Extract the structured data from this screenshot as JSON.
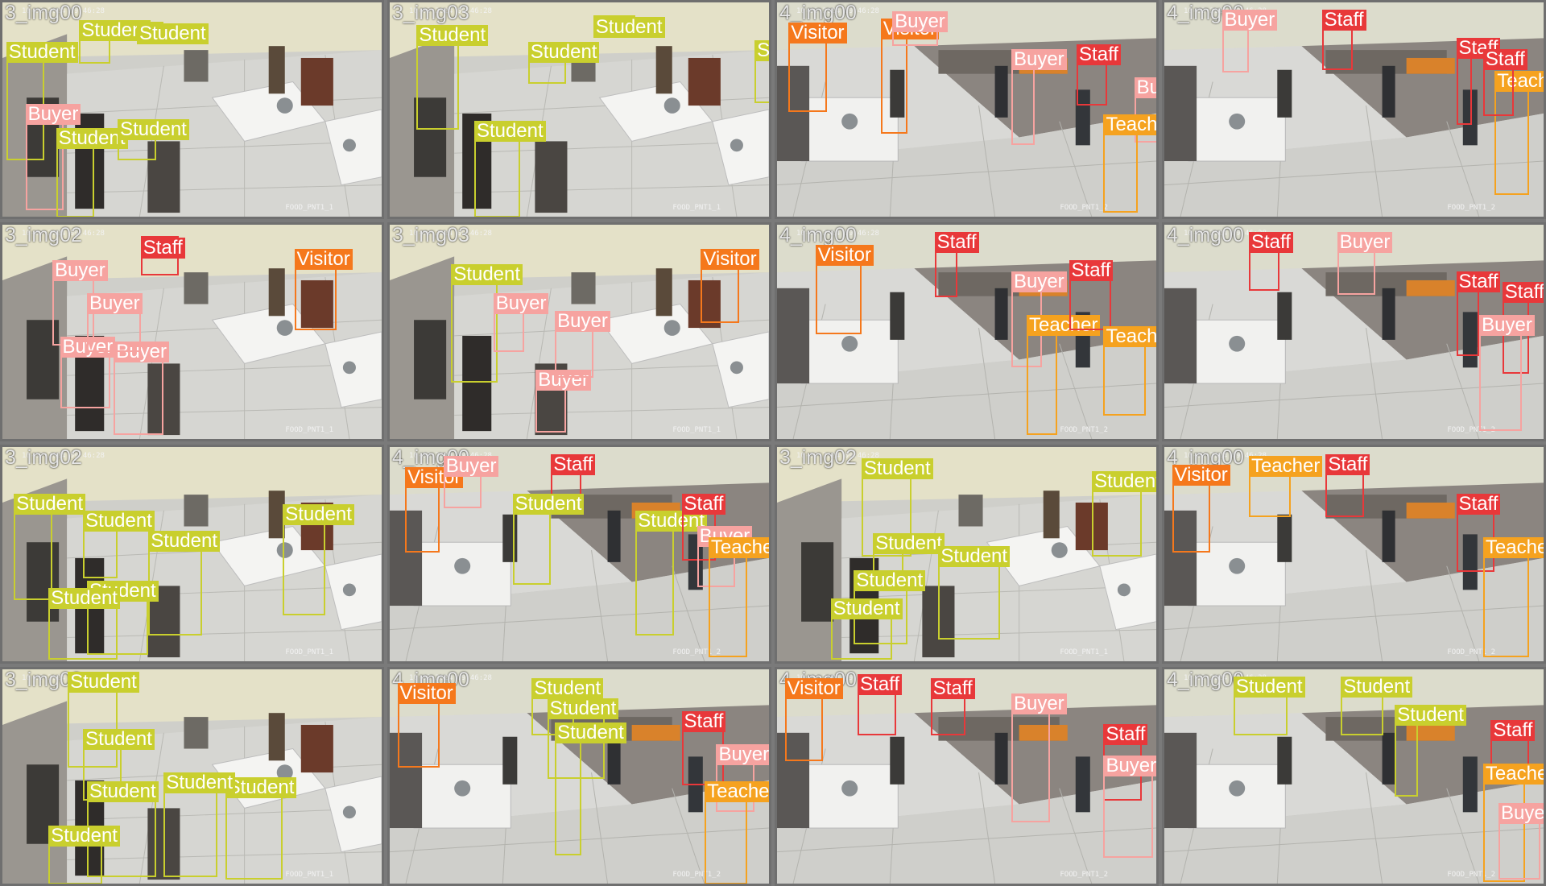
{
  "colors": {
    "Student": "#c9cf2e",
    "Buyer": "#f6a3a0",
    "Staff": "#e8383a",
    "Visitor": "#f5781c",
    "Teacher": "#f5a21f"
  },
  "tiles": [
    {
      "label": "3_img00",
      "date": "10-03-2024 09:46:28",
      "cam": "FOOD_PNT1_1",
      "scene": "A",
      "detections": [
        [
          "Student",
          0.01,
          0.27,
          0.11,
          0.72
        ],
        [
          "Buyer",
          0.06,
          0.55,
          0.16,
          0.95
        ],
        [
          "Student",
          0.14,
          0.66,
          0.24,
          0.98
        ],
        [
          "Student",
          0.3,
          0.62,
          0.4,
          0.72
        ],
        [
          "Student",
          0.2,
          0.17,
          0.28,
          0.28
        ],
        [
          "Student",
          0.35,
          0.09,
          0.42,
          0.16
        ]
      ]
    },
    {
      "label": "3_img03",
      "date": "10-03-2024 09:46:28",
      "cam": "FOOD_PNT1_1",
      "scene": "A",
      "detections": [
        [
          "Student",
          0.07,
          0.19,
          0.18,
          0.58
        ],
        [
          "Student",
          0.22,
          0.63,
          0.34,
          0.98
        ],
        [
          "Student",
          0.36,
          0.27,
          0.46,
          0.37
        ],
        [
          "Student",
          0.53,
          0.06,
          0.64,
          0.15
        ],
        [
          "Student",
          0.95,
          0.26,
          1.0,
          0.46
        ]
      ]
    },
    {
      "label": "4_img00",
      "date": "10-03-2024 09:46:28",
      "cam": "FOOD_PNT1_2",
      "scene": "B",
      "detections": [
        [
          "Visitor",
          0.03,
          0.18,
          0.13,
          0.5
        ],
        [
          "Visitor",
          0.27,
          0.16,
          0.34,
          0.6
        ],
        [
          "Buyer",
          0.3,
          0.13,
          0.42,
          0.2
        ],
        [
          "Buyer",
          0.61,
          0.3,
          0.67,
          0.65
        ],
        [
          "Staff",
          0.78,
          0.28,
          0.86,
          0.47
        ],
        [
          "Buyer",
          0.93,
          0.43,
          1.0,
          0.64
        ],
        [
          "Teacher",
          0.85,
          0.6,
          0.94,
          0.96
        ]
      ]
    },
    {
      "label": "4_img00",
      "date": "10-03-2024 09:46:28",
      "cam": "FOOD_PNT1_2",
      "scene": "B",
      "detections": [
        [
          "Buyer",
          0.15,
          0.12,
          0.22,
          0.32
        ],
        [
          "Staff",
          0.41,
          0.12,
          0.49,
          0.31
        ],
        [
          "Staff",
          0.76,
          0.25,
          0.8,
          0.56
        ],
        [
          "Teacher",
          0.86,
          0.4,
          0.95,
          0.88
        ],
        [
          "Staff",
          0.83,
          0.3,
          0.91,
          0.52
        ]
      ]
    },
    {
      "label": "3_img02",
      "date": "10-03-2024 09:46:28",
      "cam": "FOOD_PNT1_1",
      "scene": "A",
      "detections": [
        [
          "Staff",
          0.36,
          0.05,
          0.46,
          0.23
        ],
        [
          "Visitor",
          0.76,
          0.2,
          0.87,
          0.48
        ],
        [
          "Buyer",
          0.13,
          0.25,
          0.24,
          0.55
        ],
        [
          "Buyer",
          0.15,
          0.6,
          0.28,
          0.84
        ],
        [
          "Buyer",
          0.29,
          0.62,
          0.42,
          0.96
        ],
        [
          "Buyer",
          0.22,
          0.4,
          0.36,
          0.58
        ]
      ]
    },
    {
      "label": "3_img03",
      "date": "10-03-2024 09:46:28",
      "cam": "FOOD_PNT1_1",
      "scene": "A",
      "detections": [
        [
          "Student",
          0.16,
          0.27,
          0.28,
          0.72
        ],
        [
          "Buyer",
          0.27,
          0.4,
          0.35,
          0.58
        ],
        [
          "Buyer",
          0.38,
          0.75,
          0.46,
          0.95
        ],
        [
          "Buyer",
          0.43,
          0.48,
          0.53,
          0.7
        ],
        [
          "Visitor",
          0.81,
          0.2,
          0.91,
          0.45
        ]
      ]
    },
    {
      "label": "4_img00",
      "date": "10-03-2024 09:46:28",
      "cam": "FOOD_PNT1_2",
      "scene": "B",
      "detections": [
        [
          "Visitor",
          0.1,
          0.18,
          0.22,
          0.5
        ],
        [
          "Staff",
          0.41,
          0.12,
          0.47,
          0.33
        ],
        [
          "Buyer",
          0.61,
          0.3,
          0.69,
          0.65
        ],
        [
          "Teacher",
          0.65,
          0.5,
          0.73,
          0.96
        ],
        [
          "Staff",
          0.76,
          0.25,
          0.87,
          0.48
        ],
        [
          "Teacher",
          0.85,
          0.55,
          0.96,
          0.87
        ]
      ]
    },
    {
      "label": "4_img00",
      "date": "10-03-2024 09:46:28",
      "cam": "FOOD_PNT1_2",
      "scene": "B",
      "detections": [
        [
          "Staff",
          0.22,
          0.12,
          0.3,
          0.3
        ],
        [
          "Buyer",
          0.45,
          0.12,
          0.55,
          0.32
        ],
        [
          "Staff",
          0.76,
          0.3,
          0.82,
          0.6
        ],
        [
          "Staff",
          0.88,
          0.35,
          0.95,
          0.68
        ],
        [
          "Buyer",
          0.82,
          0.5,
          0.93,
          0.94
        ]
      ]
    },
    {
      "label": "3_img02",
      "date": "10-03-2024 09:46:28",
      "cam": "FOOD_PNT1_1",
      "scene": "A",
      "detections": [
        [
          "Student",
          0.03,
          0.3,
          0.13,
          0.7
        ],
        [
          "Student",
          0.21,
          0.38,
          0.3,
          0.6
        ],
        [
          "Student",
          0.38,
          0.47,
          0.52,
          0.86
        ],
        [
          "Student",
          0.73,
          0.35,
          0.84,
          0.77
        ],
        [
          "Student",
          0.22,
          0.7,
          0.38,
          0.95
        ],
        [
          "Student",
          0.12,
          0.73,
          0.3,
          0.97
        ]
      ]
    },
    {
      "label": "4_img00",
      "date": "10-03-2024 09:46:28",
      "cam": "FOOD_PNT1_2",
      "scene": "B",
      "detections": [
        [
          "Visitor",
          0.04,
          0.18,
          0.13,
          0.48
        ],
        [
          "Buyer",
          0.14,
          0.13,
          0.24,
          0.28
        ],
        [
          "Staff",
          0.42,
          0.12,
          0.5,
          0.3
        ],
        [
          "Student",
          0.32,
          0.3,
          0.42,
          0.63
        ],
        [
          "Student",
          0.64,
          0.38,
          0.74,
          0.86
        ],
        [
          "Staff",
          0.76,
          0.3,
          0.85,
          0.52
        ],
        [
          "Buyer",
          0.8,
          0.45,
          0.9,
          0.64
        ],
        [
          "Teacher",
          0.83,
          0.5,
          0.93,
          0.96
        ]
      ]
    },
    {
      "label": "3_img02",
      "date": "10-03-2024 09:46:28",
      "cam": "FOOD_PNT1_1",
      "scene": "A",
      "detections": [
        [
          "Student",
          0.22,
          0.14,
          0.35,
          0.5
        ],
        [
          "Student",
          0.25,
          0.48,
          0.33,
          0.62
        ],
        [
          "Student",
          0.42,
          0.54,
          0.58,
          0.88
        ],
        [
          "Student",
          0.2,
          0.65,
          0.34,
          0.9
        ],
        [
          "Student",
          0.14,
          0.78,
          0.3,
          0.97
        ],
        [
          "Student",
          0.82,
          0.2,
          0.95,
          0.5
        ]
      ]
    },
    {
      "label": "4_img00",
      "date": "10-03-2024 09:46:28",
      "cam": "FOOD_PNT1_2",
      "scene": "B",
      "detections": [
        [
          "Visitor",
          0.02,
          0.17,
          0.12,
          0.48
        ],
        [
          "Teacher",
          0.22,
          0.13,
          0.33,
          0.32
        ],
        [
          "Staff",
          0.42,
          0.12,
          0.52,
          0.32
        ],
        [
          "Staff",
          0.76,
          0.3,
          0.86,
          0.57
        ],
        [
          "Teacher",
          0.83,
          0.5,
          0.95,
          0.96
        ]
      ]
    },
    {
      "label": "3_img02",
      "date": "10-03-2024 09:46:28",
      "cam": "FOOD_PNT1_1",
      "scene": "A",
      "detections": [
        [
          "Student",
          0.17,
          0.1,
          0.3,
          0.45
        ],
        [
          "Student",
          0.21,
          0.36,
          0.31,
          0.6
        ],
        [
          "Student",
          0.22,
          0.6,
          0.4,
          0.95
        ],
        [
          "Student",
          0.12,
          0.8,
          0.26,
          0.98
        ],
        [
          "Student",
          0.58,
          0.58,
          0.73,
          0.96
        ],
        [
          "Student",
          0.42,
          0.56,
          0.56,
          0.95
        ]
      ]
    },
    {
      "label": "4_img00",
      "date": "10-03-2024 09:46:28",
      "cam": "FOOD_PNT1_2",
      "scene": "B",
      "detections": [
        [
          "Visitor",
          0.02,
          0.15,
          0.13,
          0.45
        ],
        [
          "Student",
          0.37,
          0.13,
          0.48,
          0.3
        ],
        [
          "Student",
          0.41,
          0.22,
          0.56,
          0.5
        ],
        [
          "Student",
          0.43,
          0.33,
          0.5,
          0.85
        ],
        [
          "Staff",
          0.76,
          0.28,
          0.87,
          0.53
        ],
        [
          "Buyer",
          0.85,
          0.43,
          0.95,
          0.65
        ],
        [
          "Teacher",
          0.82,
          0.6,
          0.93,
          0.98
        ]
      ]
    },
    {
      "label": "4_img00",
      "date": "10-03-2024 09:46:28",
      "cam": "FOOD_PNT1_2",
      "scene": "B",
      "detections": [
        [
          "Staff",
          0.21,
          0.11,
          0.31,
          0.3
        ],
        [
          "Visitor",
          0.02,
          0.13,
          0.12,
          0.42
        ],
        [
          "Staff",
          0.4,
          0.13,
          0.49,
          0.3
        ],
        [
          "Buyer",
          0.61,
          0.2,
          0.71,
          0.7
        ],
        [
          "Staff",
          0.85,
          0.34,
          0.95,
          0.6
        ],
        [
          "Buyer",
          0.85,
          0.48,
          0.98,
          0.86
        ]
      ]
    },
    {
      "label": "4_img00",
      "date": "10-03-2024 09:46:28",
      "cam": "FOOD_PNT1_2",
      "scene": "B",
      "detections": [
        [
          "Student",
          0.18,
          0.12,
          0.32,
          0.3
        ],
        [
          "Student",
          0.46,
          0.12,
          0.57,
          0.3
        ],
        [
          "Student",
          0.6,
          0.25,
          0.66,
          0.58
        ],
        [
          "Staff",
          0.85,
          0.32,
          0.95,
          0.52
        ],
        [
          "Teacher",
          0.83,
          0.52,
          0.94,
          0.97
        ],
        [
          "Buyer",
          0.87,
          0.7,
          0.98,
          0.96
        ]
      ]
    }
  ]
}
